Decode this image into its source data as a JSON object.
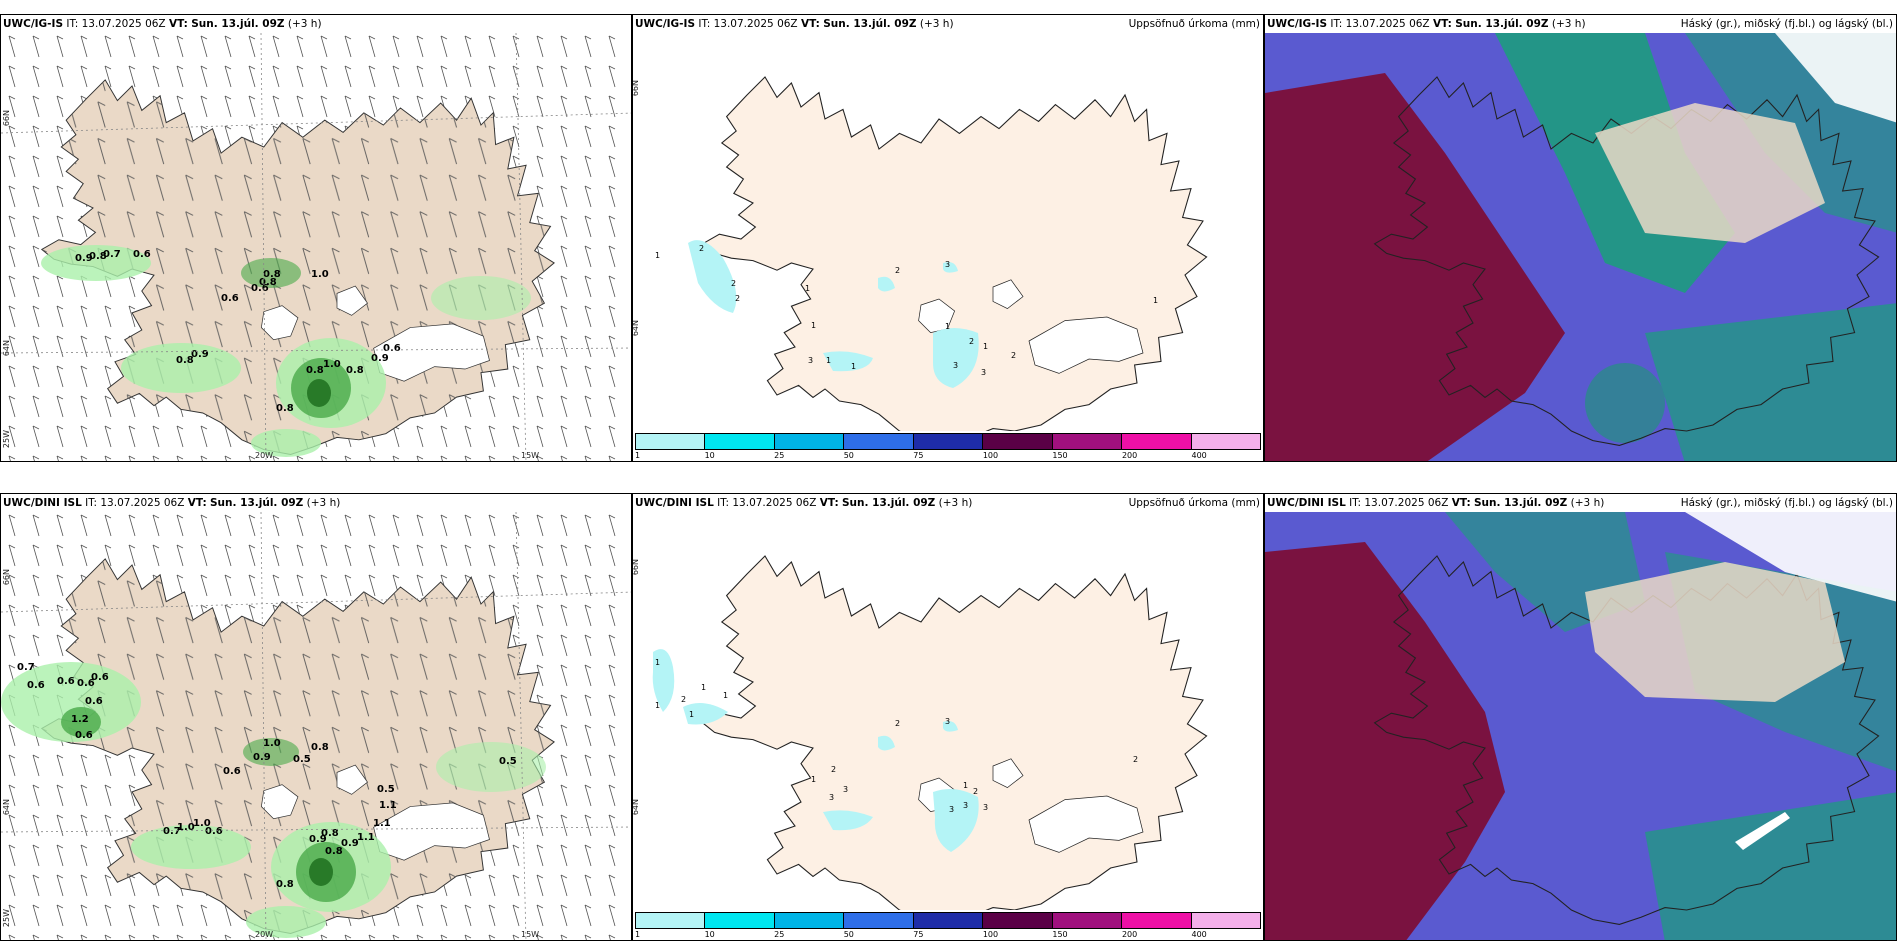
{
  "panels": {
    "p1": {
      "model": "UWC/IG-IS",
      "it_label": "IT:",
      "it": "13.07.2025 06Z",
      "vt_label": "VT:",
      "vt": "Sun. 13.júl. 09Z",
      "lead": "(+3 h)",
      "axis": {
        "lat66": "66N",
        "lat64": "64N",
        "lon25": "25W",
        "lon20": "20W",
        "lon15": "15W"
      },
      "labels": [
        "0.9",
        "0.8",
        "0.7",
        "0.6",
        "0.6",
        "0.8",
        "0.6",
        "0.8",
        "1.0",
        "0.8",
        "0.9",
        "0.8",
        "1.0",
        "0.9",
        "0.8",
        "0.6",
        "0.8"
      ]
    },
    "p2": {
      "model": "UWC/IG-IS",
      "it_label": "IT:",
      "it": "13.07.2025 06Z",
      "vt_label": "VT:",
      "vt": "Sun. 13.júl. 09Z",
      "lead": "(+3 h)",
      "title_right": "Uppsöfnuð úrkoma (mm)",
      "axis": {
        "lat66": "66N",
        "lat64": "64N"
      },
      "labels": [
        "1",
        "2",
        "2",
        "1",
        "2",
        "2",
        "3",
        "1",
        "1",
        "3",
        "1",
        "3",
        "2",
        "1",
        "3",
        "1",
        "2",
        "1"
      ]
    },
    "p3": {
      "model": "UWC/IG-IS",
      "it_label": "IT:",
      "it": "13.07.2025 06Z",
      "vt_label": "VT:",
      "vt": "Sun. 13.júl. 09Z",
      "lead": "(+3 h)",
      "title_right": "Háský (gr.), miðský (fj.bl.) og lágský (bl.)"
    },
    "p4": {
      "model": "UWC/DINI ISL",
      "it_label": "IT:",
      "it": "13.07.2025 06Z",
      "vt_label": "VT:",
      "vt": "Sun. 13.júl. 09Z",
      "lead": "(+3 h)",
      "axis": {
        "lat66": "66N",
        "lat64": "64N",
        "lon25": "25W",
        "lon20": "20W",
        "lon15": "15W"
      },
      "labels": [
        "0.7",
        "0.6",
        "0.6",
        "0.6",
        "0.6",
        "0.6",
        "1.2",
        "0.6",
        "1.0",
        "0.9",
        "0.6",
        "0.5",
        "0.8",
        "0.5",
        "1.1",
        "0.5",
        "0.7",
        "1.0",
        "1.0",
        "0.6",
        "0.9",
        "0.8",
        "0.9",
        "1.1",
        "1.1",
        "0.8",
        "0.8"
      ]
    },
    "p5": {
      "model": "UWC/DINI ISL",
      "it_label": "IT:",
      "it": "13.07.2025 06Z",
      "vt_label": "VT:",
      "vt": "Sun. 13.júl. 09Z",
      "lead": "(+3 h)",
      "title_right": "Uppsöfnuð úrkoma (mm)",
      "axis": {
        "lat66": "66N",
        "lat64": "64N"
      },
      "labels": [
        "1",
        "2",
        "1",
        "1",
        "1",
        "1",
        "2",
        "3",
        "2",
        "3",
        "1",
        "3",
        "3",
        "3",
        "2",
        "3",
        "1",
        "2"
      ]
    },
    "p6": {
      "model": "UWC/DINI ISL",
      "it_label": "IT:",
      "it": "13.07.2025 06Z",
      "vt_label": "VT:",
      "vt": "Sun. 13.júl. 09Z",
      "lead": "(+3 h)",
      "title_right": "Háský (gr.), miðský (fj.bl.) og lágský (bl.)"
    }
  },
  "colorbar": {
    "labels": [
      "1",
      "10",
      "25",
      "50",
      "75",
      "100",
      "150",
      "200",
      "400"
    ],
    "colors": [
      "#b4f4f6",
      "#00e6f0",
      "#00b4e6",
      "#2e6ee8",
      "#1e2ca8",
      "#5a0046",
      "#a0107e",
      "#ee10a6",
      "#f4b0ea"
    ]
  },
  "colors": {
    "land": "#ead9c7",
    "land_light": "#fdf0e4",
    "precip_light": "#aaf0aa",
    "precip_mid": "#4aaa4a",
    "precip_dark": "#1a6a1a",
    "cloud_high": "#7a1240",
    "cloud_mid": "#5a5ad0",
    "cloud_low": "#1aa07a"
  }
}
